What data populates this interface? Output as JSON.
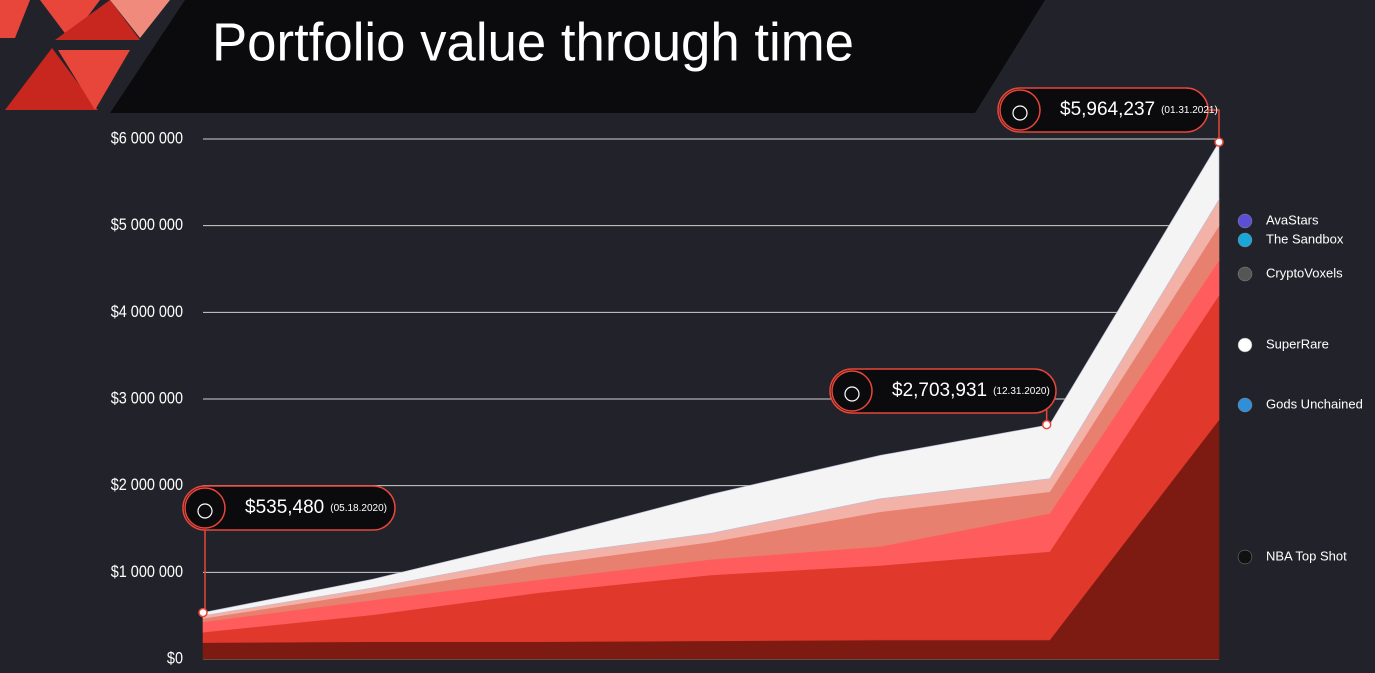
{
  "chart_data": {
    "type": "stacked_area",
    "title": "Portfolio value through time",
    "categories": [
      null,
      null,
      null,
      null,
      null,
      null,
      null
    ],
    "ylim": [
      0,
      6000000
    ],
    "yticks": [
      {
        "value": 0,
        "label": "$0"
      },
      {
        "value": 1000000,
        "label": "$1 000 000"
      },
      {
        "value": 2000000,
        "label": "$2 000 000"
      },
      {
        "value": 3000000,
        "label": "$3 000 000"
      },
      {
        "value": 4000000,
        "label": "$4 000 000"
      },
      {
        "value": 5000000,
        "label": "$5 000 000"
      },
      {
        "value": 6000000,
        "label": "$6 000 000"
      }
    ],
    "grid": true,
    "series": [
      {
        "name": "NBA Top Shot",
        "color": "#7d1b12",
        "values": [
          190000,
          200000,
          200000,
          210000,
          220000,
          220000,
          2760000
        ]
      },
      {
        "name": "Gods Unchained",
        "color": "#e0382a",
        "values": [
          120000,
          310000,
          570000,
          760000,
          860000,
          1020000,
          1440000
        ]
      },
      {
        "name": "SuperRare",
        "color": "#ff5d5d",
        "values": [
          120000,
          170000,
          150000,
          180000,
          220000,
          440000,
          400000
        ]
      },
      {
        "name": "CryptoVoxels",
        "color": "#e8806f",
        "values": [
          40000,
          90000,
          170000,
          200000,
          400000,
          250000,
          400000
        ]
      },
      {
        "name": "The Sandbox",
        "color": "#f3b2a8",
        "values": [
          30000,
          50000,
          100000,
          100000,
          150000,
          150000,
          300000
        ]
      },
      {
        "name": "AvaStars",
        "color": "#f4f4f4",
        "values": [
          35480,
          100000,
          200000,
          450000,
          500000,
          623931,
          664237
        ]
      }
    ],
    "annotations": [
      {
        "label": "$535,480",
        "date": "(05.18.2020)"
      },
      {
        "label": "$2,703,931",
        "date": "(12.31.2020)"
      },
      {
        "label": "$5,964,237",
        "date": "(01.31.2021)"
      }
    ]
  }
}
